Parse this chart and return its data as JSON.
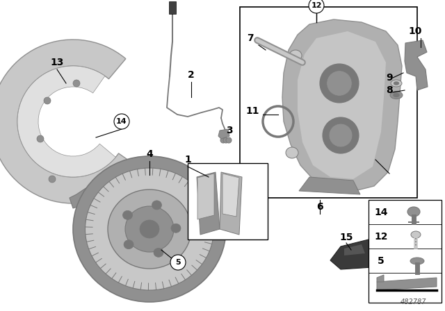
{
  "bg_color": "#ffffff",
  "diagram_number": "482787",
  "gray1": "#b0b0b0",
  "gray2": "#909090",
  "gray3": "#c8c8c8",
  "gray4": "#787878",
  "gray5": "#d8d8d8",
  "dark": "#404040",
  "black": "#000000"
}
